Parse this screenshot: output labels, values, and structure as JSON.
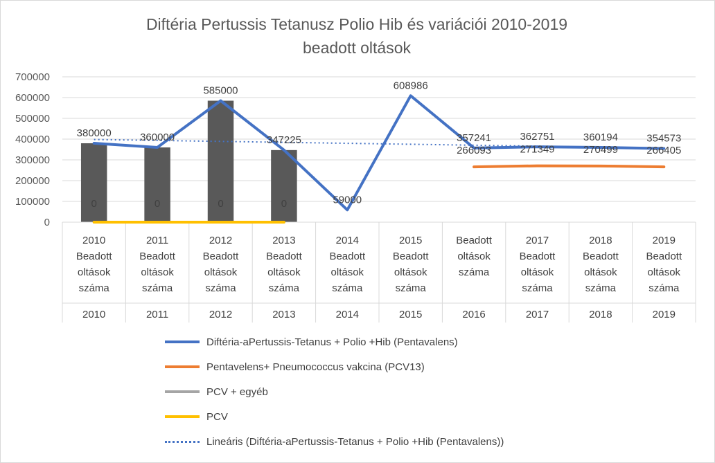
{
  "chart_data": {
    "type": "combo",
    "title_line1": "Diftéria Pertussis Tetanusz Polio Hib és variációi 2010-2019",
    "title_line2": "beadott oltások",
    "yticks": [
      "0",
      "100000",
      "200000",
      "300000",
      "400000",
      "500000",
      "600000",
      "700000"
    ],
    "ylim": [
      0,
      700000
    ],
    "grid": true,
    "legend_position": "bottom",
    "categories": [
      {
        "label": [
          "2010",
          "Beadott",
          "oltások",
          "száma"
        ],
        "year": "2010"
      },
      {
        "label": [
          "2011",
          "Beadott",
          "oltások",
          "száma"
        ],
        "year": "2011"
      },
      {
        "label": [
          "2012",
          "Beadott",
          "oltások",
          "száma"
        ],
        "year": "2012"
      },
      {
        "label": [
          "2013",
          "Beadott",
          "oltások",
          "száma"
        ],
        "year": "2013"
      },
      {
        "label": [
          "2014",
          "Beadott",
          "oltások",
          "száma"
        ],
        "year": "2014"
      },
      {
        "label": [
          "2015",
          "Beadott",
          "oltások",
          "száma"
        ],
        "year": "2015"
      },
      {
        "label": [
          "Beadott",
          "oltások",
          "száma"
        ],
        "year": "2016"
      },
      {
        "label": [
          "2017",
          "Beadott",
          "oltások",
          "száma"
        ],
        "year": "2017"
      },
      {
        "label": [
          "2018",
          "Beadott",
          "oltások",
          "száma"
        ],
        "year": "2018"
      },
      {
        "label": [
          "2019",
          "Beadott",
          "oltások",
          "száma"
        ],
        "year": "2019"
      }
    ],
    "series": [
      {
        "name": "Diftéria-aPertussis-Tetanus + Polio +Hib (Pentavalens)",
        "type": "line",
        "color": "#4472c4",
        "values": [
          380000,
          360000,
          585000,
          347225,
          59000,
          608986,
          357241,
          362751,
          360194,
          354573
        ],
        "labels": [
          "380000",
          "360000",
          "585000",
          "347225",
          "59000",
          "608986",
          "357241",
          "362751",
          "360194",
          "354573"
        ]
      },
      {
        "name": "Pentavelens+ Pneumococcus vakcina (PCV13)",
        "type": "line",
        "color": "#ed7d31",
        "values": [
          null,
          null,
          null,
          null,
          null,
          null,
          266093,
          271349,
          270499,
          266405
        ],
        "labels": [
          "",
          "",
          "",
          "",
          "",
          "",
          "266093",
          "271349",
          "270499",
          "266405"
        ]
      },
      {
        "name": "PCV + egyéb",
        "type": "bar",
        "color": "#a5a5a5",
        "bar_color": "#595959",
        "values": [
          380000,
          360000,
          585000,
          347225,
          null,
          null,
          null,
          null,
          null,
          null
        ]
      },
      {
        "name": "PCV",
        "type": "line",
        "color": "#ffc000",
        "values": [
          0,
          0,
          0,
          0,
          null,
          null,
          null,
          null,
          null,
          null
        ],
        "labels": [
          "0",
          "0",
          "0",
          "0",
          "",
          "",
          "",
          "",
          "",
          ""
        ]
      }
    ],
    "trendline": {
      "name": "Lineáris (Diftéria-aPertussis-Tetanus + Polio +Hib (Pentavalens))",
      "color": "#4472c4"
    }
  }
}
